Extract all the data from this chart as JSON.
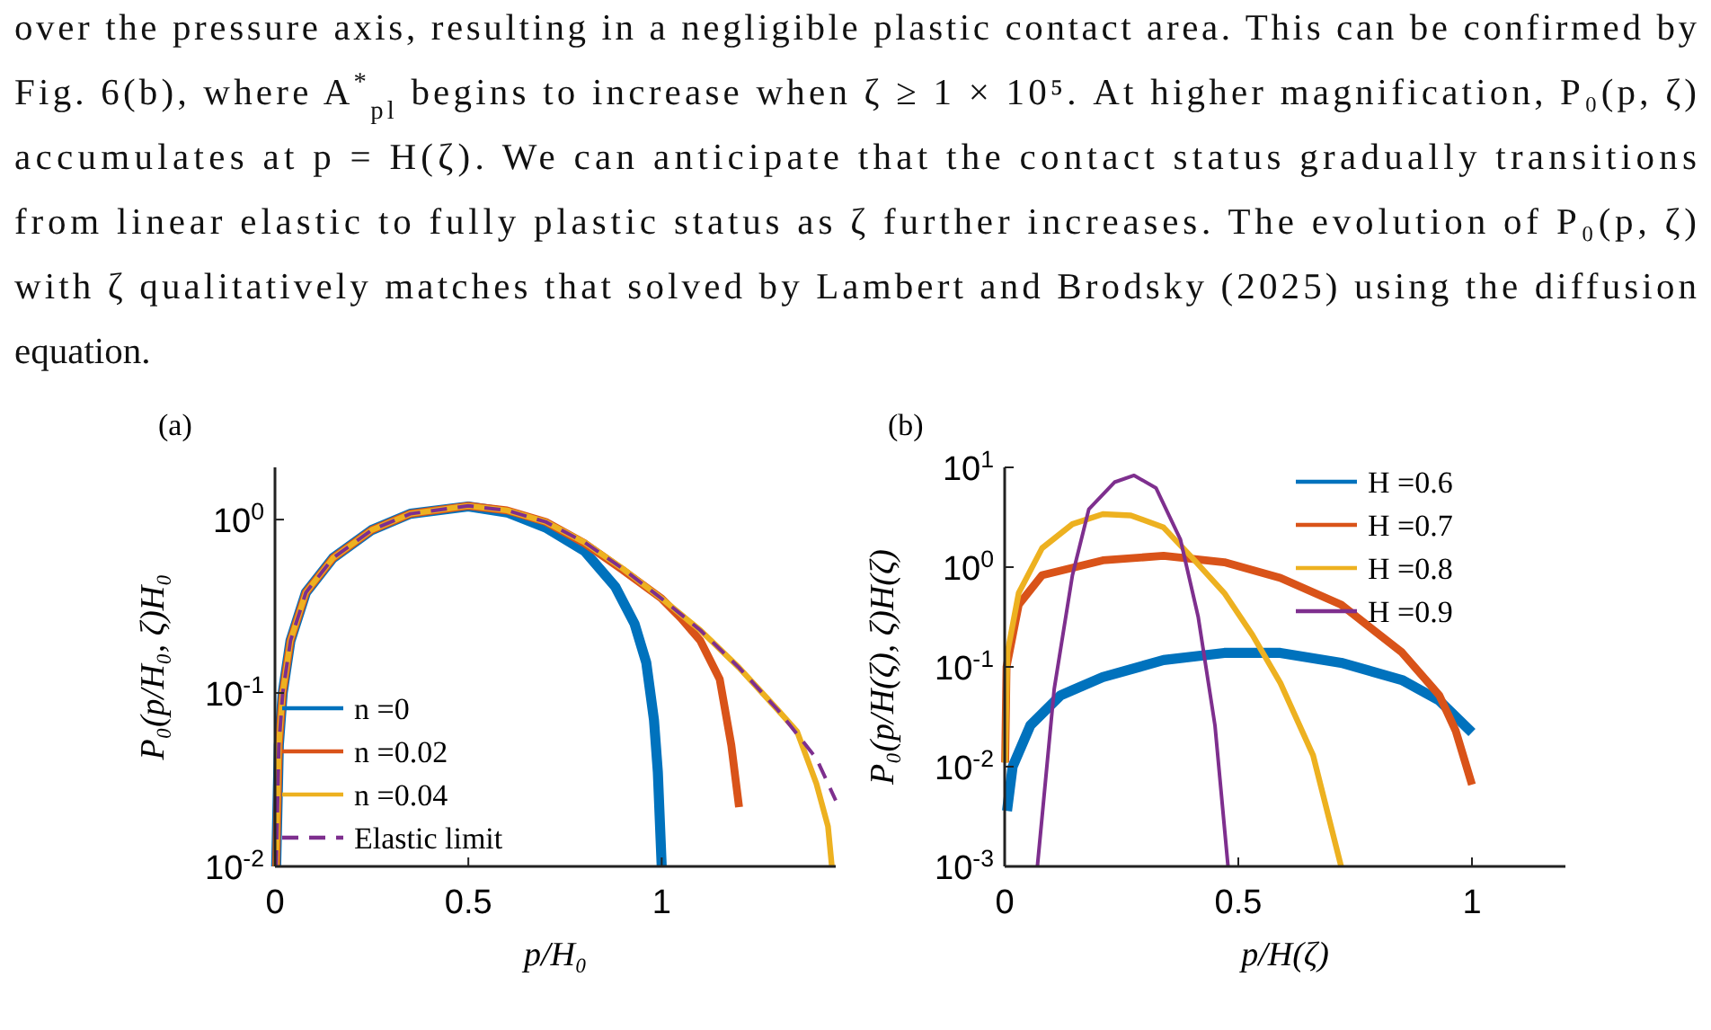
{
  "chart_data": [
    {
      "type": "other",
      "annotations": [
        "over the pressure axis, resulting in a negligible plastic contact area. This can be confirmed by",
        "Fig. 6(b), where A$^{*}$$_{pl}$ begins to increase when ζ ≥ 1 × 10⁵. At higher magnification, P₀(p, ζ)",
        "accumulates at p = H(ζ). We can anticipate that the contact status gradually transitions",
        "from linear elastic to fully plastic status as ζ further increases. The evolution of P₀(p, ζ)",
        "with ζ qualitatively matches that solved by Lambert and Brodsky (2025) using the diffusion",
        "equation."
      ]
    },
    {
      "type": "line",
      "title": "(a)",
      "xlabel": "p/H₀",
      "ylabel": "P₀(p/H₀, ζ)H₀",
      "log": true,
      "legend": "bottom left",
      "xlim": [
        0,
        1.45
      ],
      "ylim": [
        0.01,
        2
      ],
      "xticks": [
        0,
        0.5,
        1
      ],
      "yticks": [
        {
          "value": 0.01,
          "label": "10$^{-2}$"
        },
        {
          "value": 0.1,
          "label": "10$^{-1}$"
        },
        {
          "value": 1,
          "label": "10$^{0}$"
        }
      ],
      "series": [
        {
          "name": "n =0",
          "color": "#0072bd",
          "x": [
            0.003,
            0.01,
            0.02,
            0.04,
            0.08,
            0.15,
            0.25,
            0.35,
            0.5,
            0.6,
            0.7,
            0.8,
            0.88,
            0.93,
            0.96,
            0.98,
            0.99,
            1.0
          ],
          "values": [
            0.01,
            0.05,
            0.1,
            0.2,
            0.38,
            0.6,
            0.87,
            1.08,
            1.19,
            1.1,
            0.9,
            0.66,
            0.41,
            0.25,
            0.15,
            0.07,
            0.035,
            0.01
          ]
        },
        {
          "name": "n =0.02",
          "color": "#d95319",
          "x": [
            0.003,
            0.01,
            0.02,
            0.04,
            0.08,
            0.15,
            0.25,
            0.35,
            0.5,
            0.6,
            0.7,
            0.8,
            0.9,
            1.0,
            1.05,
            1.1,
            1.15,
            1.18,
            1.2
          ],
          "values": [
            0.01,
            0.05,
            0.1,
            0.2,
            0.38,
            0.6,
            0.87,
            1.08,
            1.2,
            1.13,
            0.97,
            0.73,
            0.51,
            0.35,
            0.27,
            0.2,
            0.12,
            0.05,
            0.022
          ]
        },
        {
          "name": "n =0.04",
          "color": "#edb120",
          "x": [
            0.003,
            0.01,
            0.02,
            0.04,
            0.08,
            0.15,
            0.25,
            0.35,
            0.5,
            0.6,
            0.7,
            0.8,
            0.9,
            1.0,
            1.1,
            1.2,
            1.3,
            1.35,
            1.4,
            1.43,
            1.44
          ],
          "values": [
            0.01,
            0.05,
            0.1,
            0.2,
            0.38,
            0.6,
            0.87,
            1.08,
            1.2,
            1.13,
            0.97,
            0.74,
            0.52,
            0.35,
            0.23,
            0.14,
            0.08,
            0.06,
            0.03,
            0.017,
            0.01
          ]
        },
        {
          "name": "Elastic limit",
          "color": "#7e2f8e",
          "line_style": "dashed",
          "x": [
            0.003,
            0.01,
            0.02,
            0.04,
            0.08,
            0.15,
            0.25,
            0.35,
            0.5,
            0.6,
            0.7,
            0.8,
            0.9,
            1.0,
            1.1,
            1.2,
            1.3,
            1.4,
            1.45
          ],
          "values": [
            0.01,
            0.05,
            0.1,
            0.2,
            0.38,
            0.6,
            0.87,
            1.08,
            1.2,
            1.13,
            0.97,
            0.74,
            0.52,
            0.35,
            0.23,
            0.14,
            0.08,
            0.042,
            0.024
          ]
        }
      ]
    },
    {
      "type": "line",
      "title": "(b)",
      "xlabel": "p/H(ζ)",
      "ylabel": "P₀(p/H(ζ), ζ)H(ζ)",
      "log": true,
      "legend": "top right",
      "xlim": [
        0,
        1.2
      ],
      "ylim": [
        0.001,
        10
      ],
      "xticks": [
        0,
        0.5,
        1
      ],
      "yticks": [
        {
          "value": 0.001,
          "label": "10$^{-3}$"
        },
        {
          "value": 0.01,
          "label": "10$^{-2}$"
        },
        {
          "value": 0.1,
          "label": "10$^{-1}$"
        },
        {
          "value": 1,
          "label": "10$^{0}$"
        },
        {
          "value": 10,
          "label": "10$^{1}$"
        }
      ],
      "series": [
        {
          "name": "H =0.6",
          "color": "#0072bd",
          "x": [
            0.005,
            0.017,
            0.055,
            0.12,
            0.21,
            0.34,
            0.47,
            0.59,
            0.72,
            0.85,
            0.93,
            1.0
          ],
          "values": [
            0.0036,
            0.01,
            0.026,
            0.052,
            0.079,
            0.117,
            0.138,
            0.138,
            0.11,
            0.074,
            0.046,
            0.022
          ]
        },
        {
          "name": "H =0.7",
          "color": "#d95319",
          "x": [
            0.001,
            0.004,
            0.03,
            0.08,
            0.21,
            0.34,
            0.47,
            0.59,
            0.72,
            0.85,
            0.93,
            0.965,
            1.0
          ],
          "values": [
            0.011,
            0.1,
            0.42,
            0.83,
            1.17,
            1.3,
            1.12,
            0.78,
            0.42,
            0.14,
            0.052,
            0.023,
            0.0066
          ]
        },
        {
          "name": "H =0.8",
          "color": "#edb120",
          "x": [
            0.001,
            0.006,
            0.03,
            0.08,
            0.145,
            0.21,
            0.27,
            0.34,
            0.4,
            0.47,
            0.53,
            0.59,
            0.66,
            0.72
          ],
          "values": [
            0.011,
            0.14,
            0.55,
            1.55,
            2.7,
            3.4,
            3.3,
            2.5,
            1.26,
            0.55,
            0.21,
            0.069,
            0.013,
            0.001
          ]
        },
        {
          "name": "H =0.9",
          "color": "#7e2f8e",
          "x": [
            0.07,
            0.106,
            0.145,
            0.18,
            0.235,
            0.277,
            0.324,
            0.376,
            0.414,
            0.45,
            0.478
          ],
          "values": [
            0.001,
            0.06,
            0.83,
            3.8,
            7.1,
            8.3,
            6.2,
            1.9,
            0.32,
            0.026,
            0.001
          ]
        }
      ]
    }
  ]
}
